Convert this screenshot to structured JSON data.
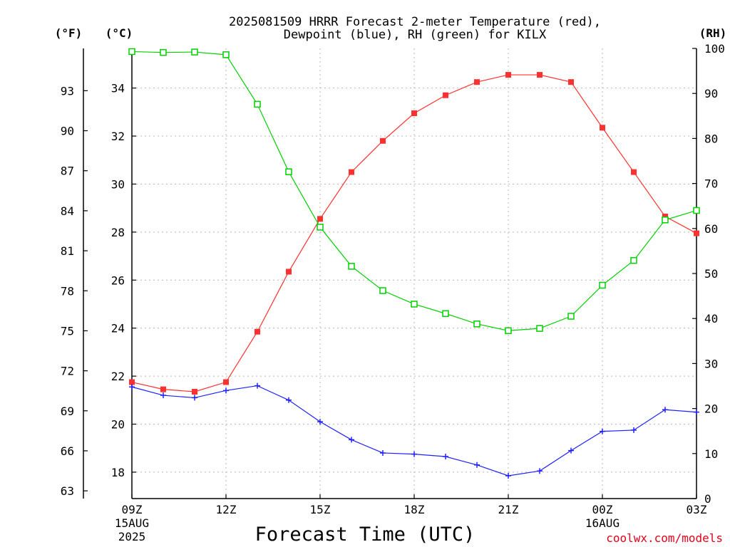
{
  "chart_data": {
    "type": "line",
    "title_line1": "2025081509 HRRR Forecast 2-meter Temperature (red),",
    "title_line2": "Dewpoint (blue), RH (green) for KILX",
    "xlabel": "Forecast Time (UTC)",
    "left_outer_unit": "(°F)",
    "left_inner_unit": "(°C)",
    "right_unit": "(RH)",
    "credit": "coolwx.com/models",
    "x_ticks": [
      {
        "hour": 0,
        "label": "09Z",
        "sub1": "15AUG",
        "sub2": "2025"
      },
      {
        "hour": 3,
        "label": "12Z",
        "sub1": "",
        "sub2": ""
      },
      {
        "hour": 6,
        "label": "15Z",
        "sub1": "",
        "sub2": ""
      },
      {
        "hour": 9,
        "label": "18Z",
        "sub1": "",
        "sub2": ""
      },
      {
        "hour": 12,
        "label": "21Z",
        "sub1": "",
        "sub2": ""
      },
      {
        "hour": 15,
        "label": "00Z",
        "sub1": "16AUG",
        "sub2": ""
      },
      {
        "hour": 18,
        "label": "03Z",
        "sub1": "",
        "sub2": ""
      }
    ],
    "x": [
      0,
      1,
      2,
      3,
      4,
      5,
      6,
      7,
      8,
      9,
      10,
      11,
      12,
      13,
      14,
      15,
      16,
      17,
      18
    ],
    "xlim": [
      0,
      18
    ],
    "c_axis": {
      "ylim": [
        16.9,
        35.65
      ],
      "ticks": [
        18,
        20,
        22,
        24,
        26,
        28,
        30,
        32,
        34
      ]
    },
    "f_ticks": [
      63,
      66,
      69,
      72,
      75,
      78,
      81,
      84,
      87,
      90,
      93
    ],
    "rh_axis": {
      "ylim": [
        0,
        100
      ],
      "ticks": [
        0,
        10,
        20,
        30,
        40,
        50,
        60,
        70,
        80,
        90,
        100
      ]
    },
    "series": [
      {
        "name": "Temperature",
        "axis": "C",
        "color": "#ff3030",
        "marker": "filled-square",
        "values": [
          21.75,
          21.45,
          21.35,
          21.75,
          23.85,
          26.35,
          28.55,
          30.5,
          31.8,
          32.95,
          33.7,
          34.25,
          34.55,
          34.55,
          34.25,
          32.35,
          30.5,
          28.65,
          27.95
        ]
      },
      {
        "name": "Dewpoint",
        "axis": "C",
        "color": "#2020ff",
        "marker": "plus",
        "values": [
          21.55,
          21.2,
          21.1,
          21.4,
          21.6,
          21.0,
          20.1,
          19.35,
          18.8,
          18.75,
          18.65,
          18.3,
          17.85,
          18.05,
          18.9,
          19.7,
          19.75,
          20.6,
          20.5
        ]
      },
      {
        "name": "RH",
        "axis": "RH",
        "color": "#00d000",
        "marker": "open-square",
        "values": [
          99.3,
          99.1,
          99.2,
          98.6,
          87.6,
          72.6,
          60.3,
          51.6,
          46.2,
          43.2,
          41.1,
          38.8,
          37.3,
          37.8,
          40.5,
          47.4,
          52.9,
          61.9,
          64.0
        ]
      }
    ],
    "grid": true
  }
}
